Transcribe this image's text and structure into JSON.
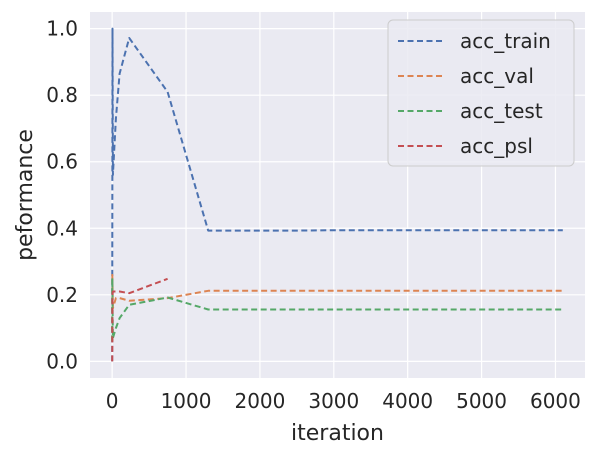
{
  "chart_data": {
    "type": "line",
    "title": "",
    "xlabel": "iteration",
    "ylabel": "peformance",
    "xlim": [
      -300,
      6400
    ],
    "ylim": [
      -0.05,
      1.05
    ],
    "xticks": [
      0,
      1000,
      2000,
      3000,
      4000,
      5000,
      6000
    ],
    "xtick_labels": [
      "0",
      "1000",
      "2000",
      "3000",
      "4000",
      "5000",
      "6000"
    ],
    "yticks": [
      0.0,
      0.2,
      0.4,
      0.6,
      0.8,
      1.0
    ],
    "ytick_labels": [
      "0.0",
      "0.2",
      "0.4",
      "0.6",
      "0.8",
      "1.0"
    ],
    "grid": true,
    "background": "#eaeaf2",
    "grid_color": "#ffffff",
    "legend_position": "upper right",
    "line_style": "dashed",
    "series": [
      {
        "name": "acc_train",
        "color": "#4c72b0",
        "x": [
          0,
          2,
          4,
          10,
          50,
          100,
          230,
          750,
          1300,
          2500,
          2900,
          6100
        ],
        "y": [
          0.0,
          0.35,
          1.0,
          0.56,
          0.73,
          0.865,
          0.972,
          0.81,
          0.393,
          0.393,
          0.394,
          0.394
        ]
      },
      {
        "name": "acc_val",
        "color": "#dd8452",
        "x": [
          0,
          2,
          4,
          10,
          50,
          100,
          230,
          750,
          1300,
          6100
        ],
        "y": [
          0.06,
          0.26,
          0.23,
          0.16,
          0.19,
          0.19,
          0.182,
          0.19,
          0.212,
          0.212
        ]
      },
      {
        "name": "acc_test",
        "color": "#55a868",
        "x": [
          0,
          2,
          4,
          10,
          50,
          100,
          230,
          750,
          1300,
          6100
        ],
        "y": [
          0.06,
          0.25,
          0.19,
          0.07,
          0.1,
          0.13,
          0.17,
          0.192,
          0.156,
          0.156
        ]
      },
      {
        "name": "acc_psl",
        "color": "#c44e52",
        "x": [
          0,
          2,
          4,
          10,
          50,
          100,
          230,
          750
        ],
        "y": [
          0.0,
          0.05,
          0.2,
          0.21,
          0.21,
          0.21,
          0.205,
          0.248
        ]
      }
    ]
  }
}
